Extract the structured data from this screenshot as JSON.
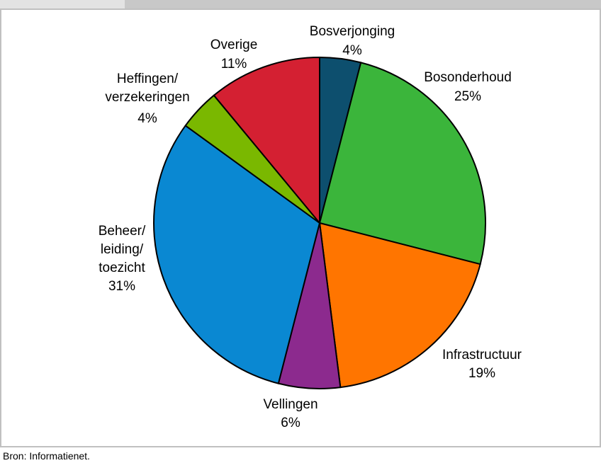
{
  "chart_data": {
    "type": "pie",
    "categories": [
      "Bosverjonging",
      "Bosonderhoud",
      "Infrastructuur",
      "Vellingen",
      "Beheer/\nleiding/\ntoezicht",
      "Heffingen/\nverzekeringen",
      "Overige"
    ],
    "values": [
      4,
      25,
      19,
      6,
      31,
      4,
      11
    ],
    "value_labels": [
      "4%",
      "25%",
      "19%",
      "6%",
      "31%",
      "4%",
      "11%"
    ],
    "colors": [
      "#0d4f6e",
      "#3bb53b",
      "#ff7500",
      "#8c2a8e",
      "#0a88d2",
      "#7ab800",
      "#d42032"
    ],
    "source": "Bron: Informatienet."
  }
}
